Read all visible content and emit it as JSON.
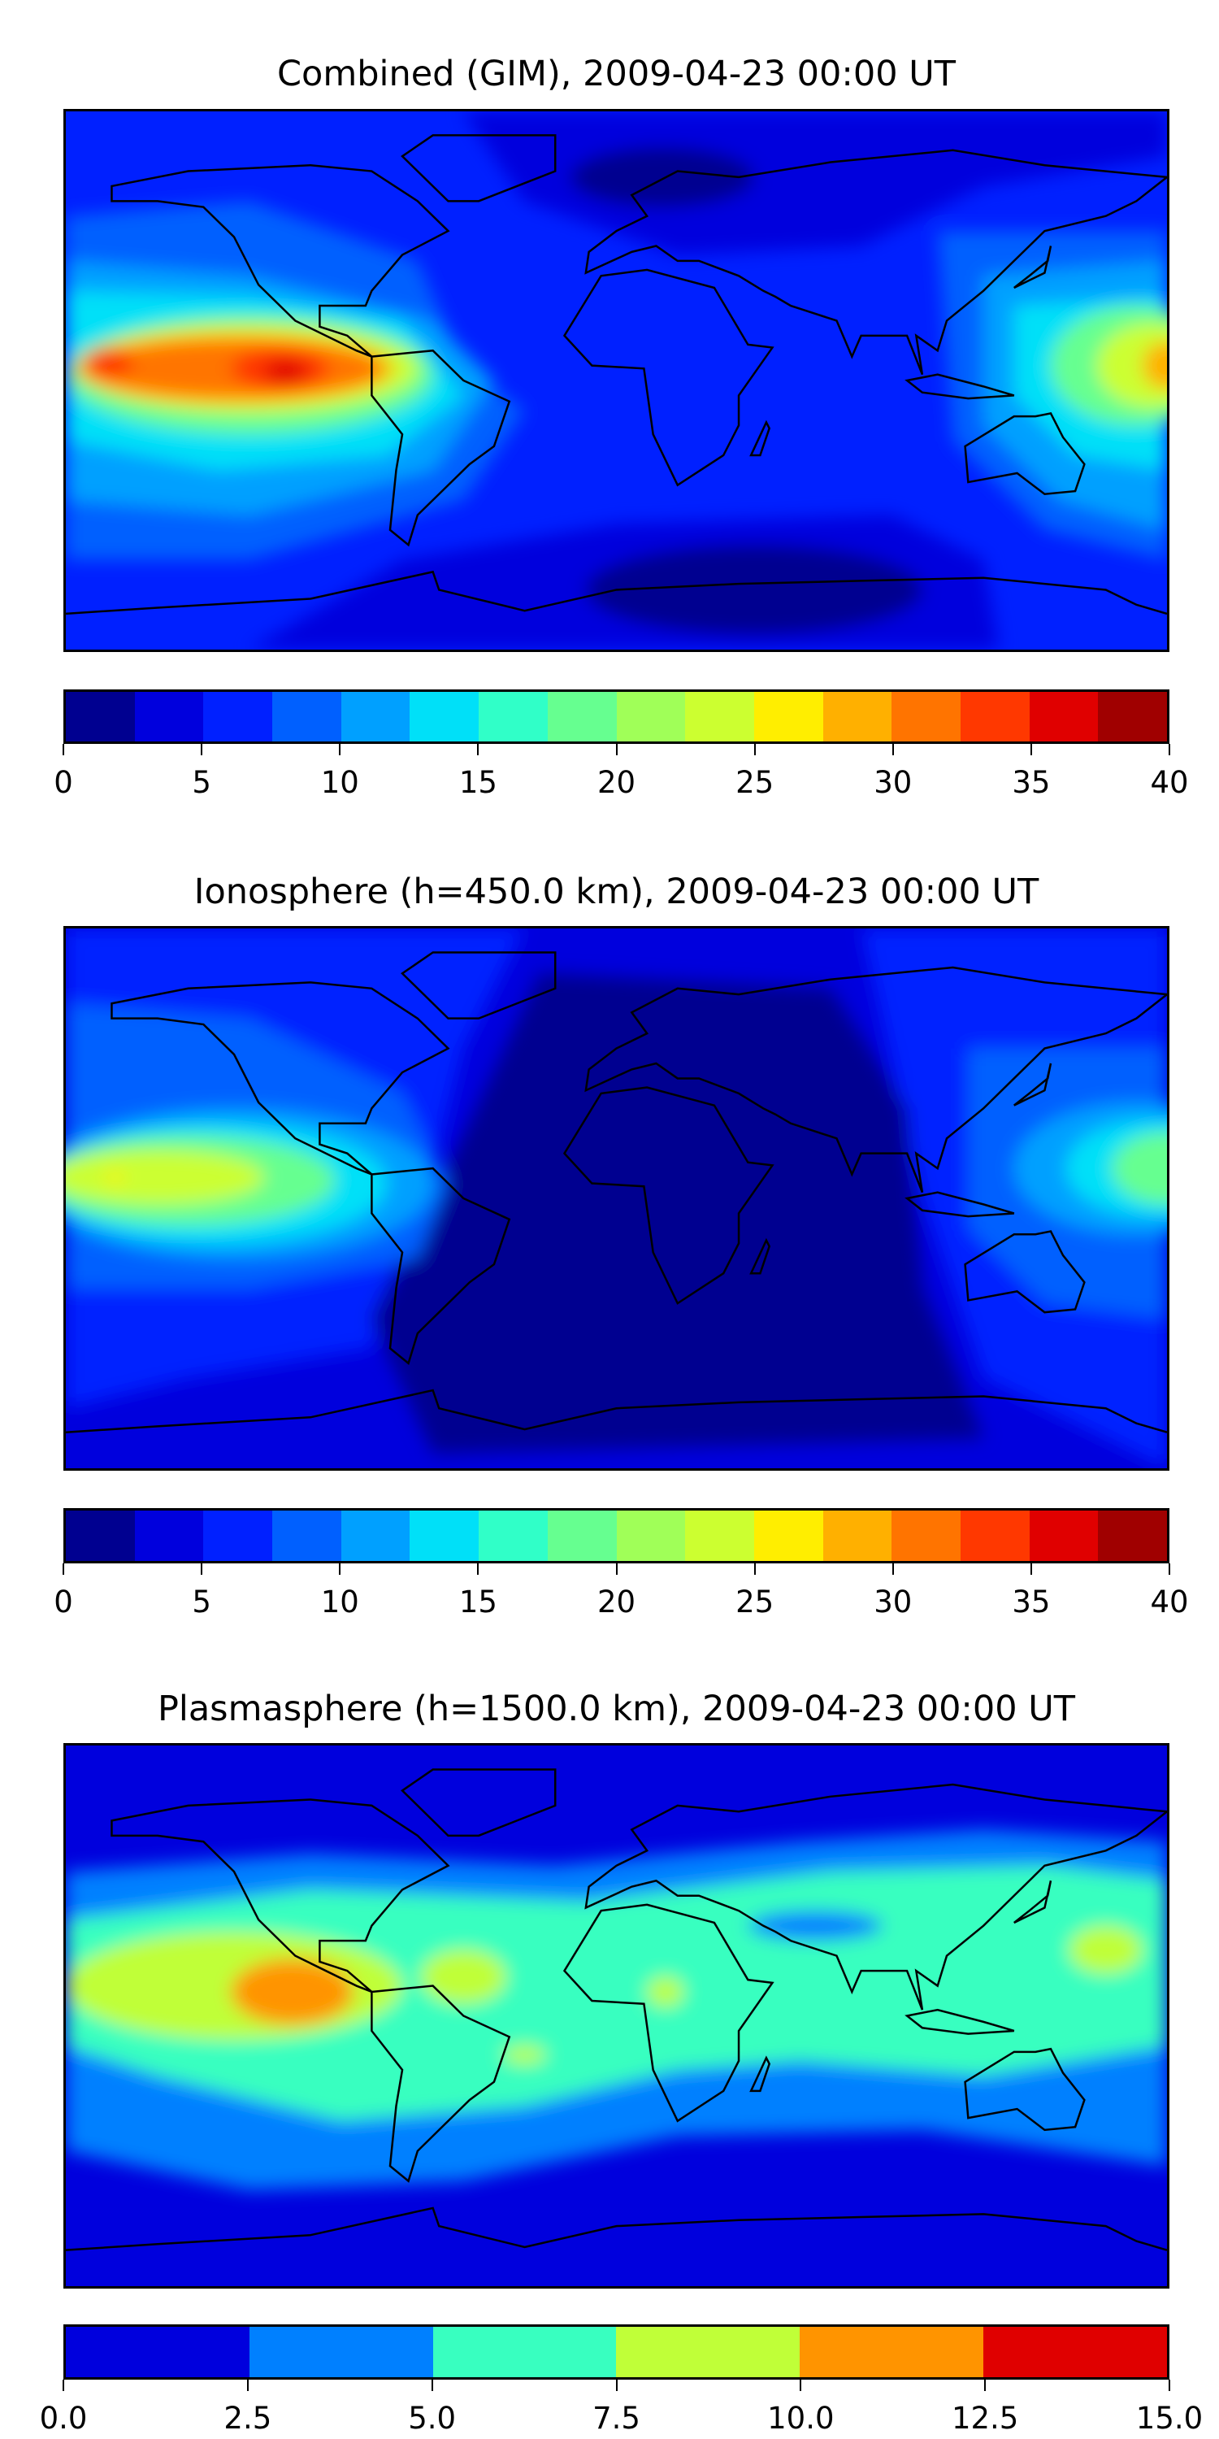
{
  "chart_data": [
    {
      "type": "heatmap",
      "subtype": "filled-contour world map",
      "title": "Combined (GIM), 2009-04-23 00:00 UT",
      "colorbar": {
        "range": [
          0,
          40
        ],
        "levels": [
          0,
          2.5,
          5,
          7.5,
          10,
          12.5,
          15,
          17.5,
          20,
          22.5,
          25,
          27.5,
          30,
          32.5,
          35,
          37.5,
          40
        ],
        "tick_labels": [
          "0",
          "5",
          "10",
          "15",
          "20",
          "25",
          "30",
          "35",
          "40"
        ],
        "tick_values": [
          0,
          5,
          10,
          15,
          20,
          25,
          30,
          35,
          40
        ],
        "colors": [
          "#000090",
          "#0000dd",
          "#0020ff",
          "#0060ff",
          "#00a0ff",
          "#00e0f8",
          "#30ffc8",
          "#66ff90",
          "#a0ff58",
          "#ccff30",
          "#ffee00",
          "#ffb000",
          "#ff7400",
          "#ff3800",
          "#e00000",
          "#a00000"
        ]
      },
      "features": "Peak ~35-37.5 over equatorial eastern Pacific; secondary ~27.5-30 near western Pacific edge; minimum 0-2.5 over N. Atlantic/Europe high latitudes and Antarctica"
    },
    {
      "type": "heatmap",
      "subtype": "filled-contour world map",
      "title": "Ionosphere  (h=450.0 km), 2009-04-23 00:00 UT",
      "colorbar": {
        "range": [
          0,
          40
        ],
        "levels": [
          0,
          2.5,
          5,
          7.5,
          10,
          12.5,
          15,
          17.5,
          20,
          22.5,
          25,
          27.5,
          30,
          32.5,
          35,
          37.5,
          40
        ],
        "tick_labels": [
          "0",
          "5",
          "10",
          "15",
          "20",
          "25",
          "30",
          "35",
          "40"
        ],
        "tick_values": [
          0,
          5,
          10,
          15,
          20,
          25,
          30,
          35,
          40
        ],
        "colors": [
          "#000090",
          "#0000dd",
          "#0020ff",
          "#0060ff",
          "#00a0ff",
          "#00e0f8",
          "#30ffc8",
          "#66ff90",
          "#a0ff58",
          "#ccff30",
          "#ffee00",
          "#ffb000",
          "#ff7400",
          "#ff3800",
          "#e00000",
          "#a00000"
        ]
      },
      "features": "Peak ~22.5-25 over equatorial eastern Pacific; ~20 at western Pacific edge; 0-2.5 over Atlantic, Africa, Europe"
    },
    {
      "type": "heatmap",
      "subtype": "filled-contour world map",
      "title": "Plasmasphere (h=1500.0 km), 2009-04-23 00:00 UT",
      "colorbar": {
        "range": [
          0,
          15
        ],
        "levels": [
          0,
          2.5,
          5,
          7.5,
          10,
          12.5,
          15
        ],
        "tick_labels": [
          "0.0",
          "2.5",
          "5.0",
          "7.5",
          "10.0",
          "12.5",
          "15.0"
        ],
        "tick_values": [
          0,
          2.5,
          5,
          7.5,
          10,
          12.5,
          15
        ],
        "colors": [
          "#0000dd",
          "#0080ff",
          "#38ffc0",
          "#c0ff38",
          "#ff9400",
          "#e00000"
        ]
      },
      "features": "Low-latitude band 5-7.5; peak 10-12.5 over eastern Pacific; 0-2.5 at high latitudes"
    }
  ]
}
